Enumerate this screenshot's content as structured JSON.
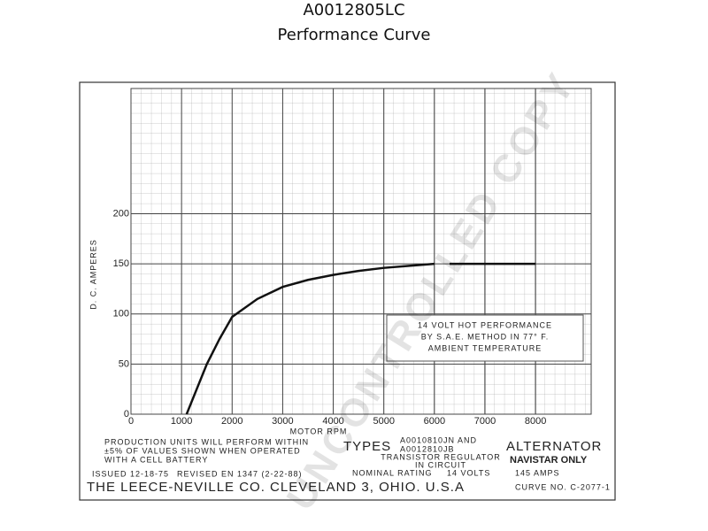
{
  "chart_data": {
    "type": "line",
    "title": "A0012805LC",
    "subtitle": "Performance Curve",
    "x_label": "MOTOR RPM",
    "y_label": "D. C. AMPERES",
    "x": [
      1100,
      1300,
      1500,
      1750,
      2000,
      2500,
      3000,
      3500,
      4000,
      4500,
      5000,
      5500,
      6000,
      6150,
      6300,
      8000
    ],
    "series": [
      {
        "name": "14 VOLT HOT PERFORMANCE",
        "color": "#111111",
        "values": [
          0,
          25,
          50,
          75,
          97,
          115,
          127,
          134,
          139,
          143,
          146,
          148,
          150,
          null,
          150,
          150
        ]
      }
    ],
    "xlim": [
      0,
      9100
    ],
    "ylim": [
      0,
      325
    ],
    "xticks": [
      0,
      1000,
      2000,
      3000,
      4000,
      5000,
      6000,
      7000,
      8000
    ],
    "yticks": [
      0,
      50,
      100,
      150,
      200
    ],
    "grid": true,
    "annotation": [
      "14 VOLT HOT PERFORMANCE",
      "BY S.A.E. METHOD IN 77° F.",
      "AMBIENT TEMPERATURE"
    ],
    "notes": [
      "PRODUCTION UNITS WILL PERFORM WITHIN",
      "±5% OF VALUES SHOWN WHEN OPERATED",
      "WITH A CELL BATTERY"
    ],
    "types_label": "TYPES",
    "types": [
      "A0010810JN AND",
      "A0012810JB"
    ],
    "regulator": [
      "TRANSISTOR REGULATOR",
      "IN CIRCUIT"
    ],
    "product": [
      "ALTERNATOR",
      "NAVISTAR ONLY"
    ],
    "rating_label": "NOMINAL RATING",
    "rating_volts": "14 VOLTS",
    "rating_amps": "145 AMPS",
    "issued": "ISSUED 12-18-75",
    "revised": "REVISED EN 1347 (2-22-88)",
    "maker": "THE LEECE-NEVILLE CO. CLEVELAND 3, OHIO. U.S.A",
    "curve_no": "CURVE NO. C-2077-1",
    "watermark": "UNCONTROLLED COPY"
  }
}
